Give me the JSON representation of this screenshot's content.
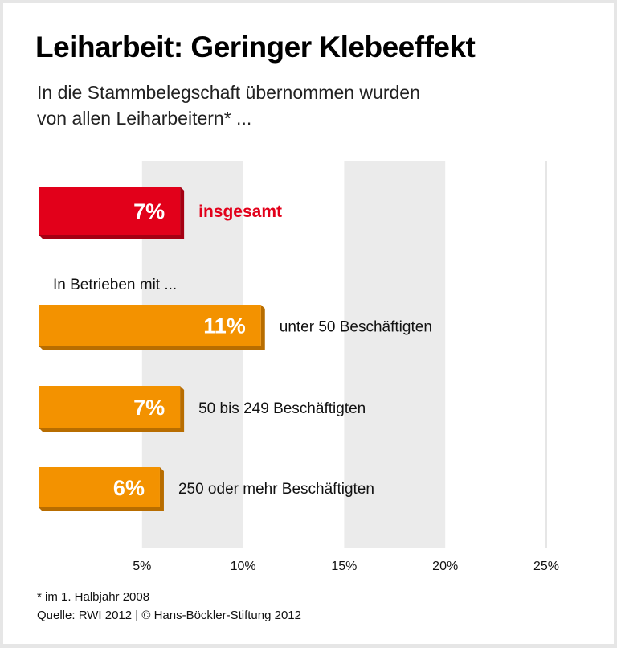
{
  "chart_data": {
    "type": "bar",
    "orientation": "horizontal",
    "title": "Leiharbeit: Geringer Klebeeffekt",
    "subtitle": [
      "In die Stammbelegschaft übernommen wurden",
      "von allen Leiharbeitern* ..."
    ],
    "group_label": "In Betrieben mit ...",
    "categories": [
      "insgesamt",
      "unter 50 Beschäftigten",
      "50 bis 249 Beschäftigten",
      "250 oder mehr Beschäftigten"
    ],
    "values": [
      7,
      11,
      7,
      6
    ],
    "value_labels": [
      "7%",
      "11%",
      "7%",
      "6%"
    ],
    "colors": [
      "#e2001a",
      "#f39200",
      "#f39200",
      "#f39200"
    ],
    "edge_colors": [
      "#a50013",
      "#b86d00",
      "#b86d00",
      "#b86d00"
    ],
    "label_colors": [
      "#e2001a",
      "#111111",
      "#111111",
      "#111111"
    ],
    "xlim": [
      0,
      25
    ],
    "xticks": [
      5,
      10,
      15,
      20,
      25
    ],
    "xtick_labels": [
      "5%",
      "10%",
      "15%",
      "20%",
      "25%"
    ],
    "band_color": "#ebebeb",
    "grid": "alternating bands",
    "footnotes": [
      "* im 1. Halbjahr 2008",
      "Quelle: RWI 2012 | © Hans-Böckler-Stiftung 2012"
    ]
  }
}
